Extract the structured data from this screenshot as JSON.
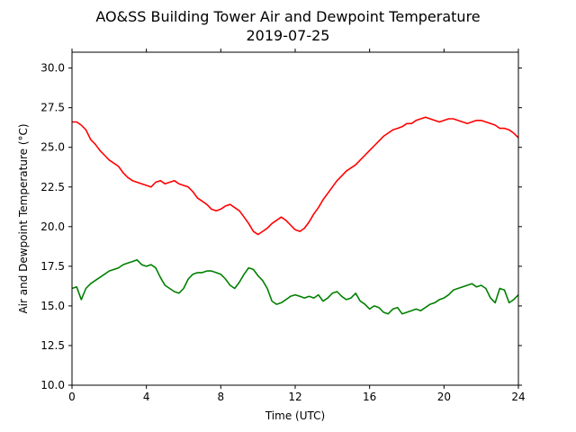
{
  "chart_data": {
    "type": "line",
    "title": "AO&SS Building Tower Air and Dewpoint Temperature",
    "subtitle": "2019-07-25",
    "xlabel": "Time (UTC)",
    "ylabel": "Air and Dewpoint Temperature (°C)",
    "xlim": [
      0,
      24
    ],
    "ylim": [
      10.0,
      31.0
    ],
    "x_ticks": [
      0,
      4,
      8,
      12,
      16,
      20,
      24
    ],
    "x_tick_labels": [
      "0",
      "4",
      "8",
      "12",
      "16",
      "20",
      "24"
    ],
    "y_ticks": [
      10.0,
      12.5,
      15.0,
      17.5,
      20.0,
      22.5,
      25.0,
      27.5,
      30.0
    ],
    "y_tick_labels": [
      "10.0",
      "12.5",
      "15.0",
      "17.5",
      "20.0",
      "22.5",
      "25.0",
      "27.5",
      "30.0"
    ],
    "grid": false,
    "legend": "none",
    "series": [
      {
        "color": "#ff0000",
        "x": [
          0,
          0.25,
          0.5,
          0.75,
          1,
          1.25,
          1.5,
          1.75,
          2,
          2.25,
          2.5,
          2.75,
          3,
          3.25,
          3.5,
          3.75,
          4,
          4.25,
          4.5,
          4.75,
          5,
          5.25,
          5.5,
          5.75,
          6,
          6.25,
          6.5,
          6.75,
          7,
          7.25,
          7.5,
          7.75,
          8,
          8.25,
          8.5,
          8.75,
          9,
          9.25,
          9.5,
          9.75,
          10,
          10.25,
          10.5,
          10.75,
          11,
          11.25,
          11.5,
          11.75,
          12,
          12.25,
          12.5,
          12.75,
          13,
          13.25,
          13.5,
          13.75,
          14,
          14.25,
          14.5,
          14.75,
          15,
          15.25,
          15.5,
          15.75,
          16,
          16.25,
          16.5,
          16.75,
          17,
          17.25,
          17.5,
          17.75,
          18,
          18.25,
          18.5,
          18.75,
          19,
          19.25,
          19.5,
          19.75,
          20,
          20.25,
          20.5,
          20.75,
          21,
          21.25,
          21.5,
          21.75,
          22,
          22.25,
          22.5,
          22.75,
          23,
          23.25,
          23.5,
          23.75,
          24
        ],
        "values": [
          26.6,
          26.6,
          26.4,
          26.1,
          25.5,
          25.2,
          24.8,
          24.5,
          24.2,
          24.0,
          23.8,
          23.4,
          23.1,
          22.9,
          22.8,
          22.7,
          22.6,
          22.5,
          22.8,
          22.9,
          22.7,
          22.8,
          22.9,
          22.7,
          22.6,
          22.5,
          22.2,
          21.8,
          21.6,
          21.4,
          21.1,
          21.0,
          21.1,
          21.3,
          21.4,
          21.2,
          21.0,
          20.6,
          20.2,
          19.7,
          19.5,
          19.7,
          19.9,
          20.2,
          20.4,
          20.6,
          20.4,
          20.1,
          19.8,
          19.7,
          19.9,
          20.3,
          20.8,
          21.2,
          21.7,
          22.1,
          22.5,
          22.9,
          23.2,
          23.5,
          23.7,
          23.9,
          24.2,
          24.5,
          24.8,
          25.1,
          25.4,
          25.7,
          25.9,
          26.1,
          26.2,
          26.3,
          26.5,
          26.5,
          26.7,
          26.8,
          26.9,
          26.8,
          26.7,
          26.6,
          26.7,
          26.8,
          26.8,
          26.7,
          26.6,
          26.5,
          26.6,
          26.7,
          26.7,
          26.6,
          26.5,
          26.4,
          26.2,
          26.2,
          26.1,
          25.9,
          25.6
        ],
        "line_style": "solid"
      },
      {
        "color": "#008000",
        "x": [
          0,
          0.25,
          0.5,
          0.75,
          1,
          1.25,
          1.5,
          1.75,
          2,
          2.25,
          2.5,
          2.75,
          3,
          3.25,
          3.5,
          3.75,
          4,
          4.25,
          4.5,
          4.75,
          5,
          5.25,
          5.5,
          5.75,
          6,
          6.25,
          6.5,
          6.75,
          7,
          7.25,
          7.5,
          7.75,
          8,
          8.25,
          8.5,
          8.75,
          9,
          9.25,
          9.5,
          9.75,
          10,
          10.25,
          10.5,
          10.75,
          11,
          11.25,
          11.5,
          11.75,
          12,
          12.25,
          12.5,
          12.75,
          13,
          13.25,
          13.5,
          13.75,
          14,
          14.25,
          14.5,
          14.75,
          15,
          15.25,
          15.5,
          15.75,
          16,
          16.25,
          16.5,
          16.75,
          17,
          17.25,
          17.5,
          17.75,
          18,
          18.25,
          18.5,
          18.75,
          19,
          19.25,
          19.5,
          19.75,
          20,
          20.25,
          20.5,
          20.75,
          21,
          21.25,
          21.5,
          21.75,
          22,
          22.25,
          22.5,
          22.75,
          23,
          23.25,
          23.5,
          23.75,
          24
        ],
        "values": [
          16.1,
          16.2,
          15.4,
          16.1,
          16.4,
          16.6,
          16.8,
          17.0,
          17.2,
          17.3,
          17.4,
          17.6,
          17.7,
          17.8,
          17.9,
          17.6,
          17.5,
          17.6,
          17.4,
          16.8,
          16.3,
          16.1,
          15.9,
          15.8,
          16.1,
          16.7,
          17.0,
          17.1,
          17.1,
          17.2,
          17.2,
          17.1,
          17.0,
          16.7,
          16.3,
          16.1,
          16.5,
          17.0,
          17.4,
          17.3,
          16.9,
          16.6,
          16.1,
          15.3,
          15.1,
          15.2,
          15.4,
          15.6,
          15.7,
          15.6,
          15.5,
          15.6,
          15.5,
          15.7,
          15.3,
          15.5,
          15.8,
          15.9,
          15.6,
          15.4,
          15.5,
          15.8,
          15.3,
          15.1,
          14.8,
          15.0,
          14.9,
          14.6,
          14.5,
          14.8,
          14.9,
          14.5,
          14.6,
          14.7,
          14.8,
          14.7,
          14.9,
          15.1,
          15.2,
          15.4,
          15.5,
          15.7,
          16.0,
          16.1,
          16.2,
          16.3,
          16.4,
          16.2,
          16.3,
          16.1,
          15.5,
          15.2,
          16.1,
          16.0,
          15.2,
          15.4,
          15.7
        ]
      }
    ]
  }
}
